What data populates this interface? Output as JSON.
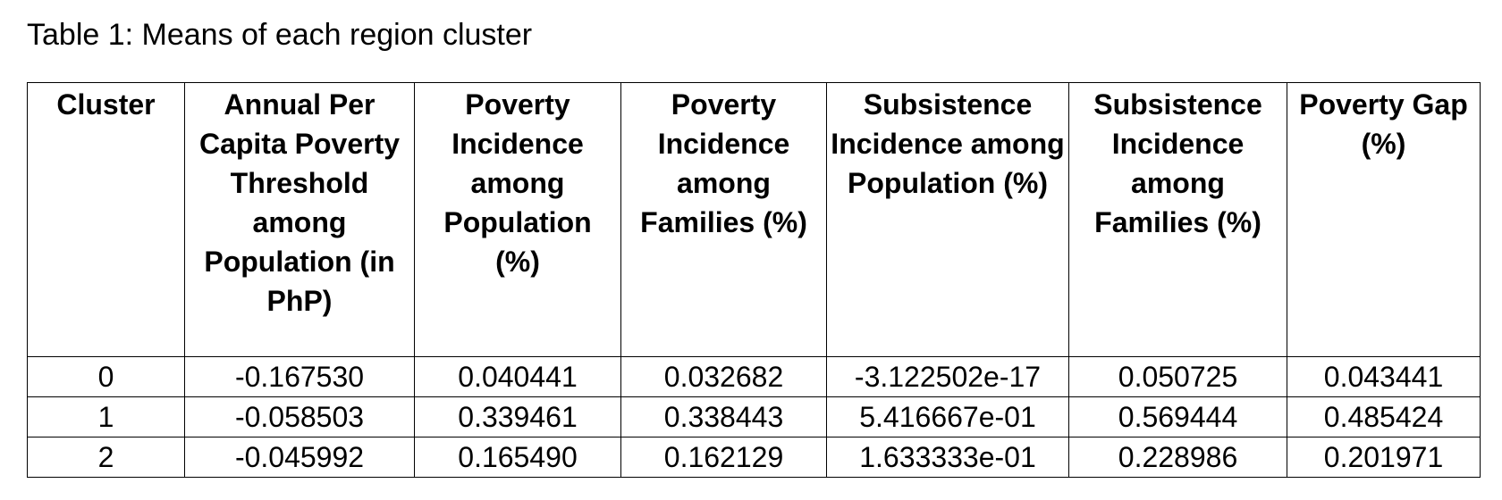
{
  "caption": "Table 1: Means of each region cluster",
  "table": {
    "headers": [
      "Cluster",
      "Annual Per Capita Poverty Threshold among Population (in PhP)",
      "Poverty Incidence among Population (%)",
      "Poverty Incidence among Families (%)",
      "Subsistence Incidence among Population (%)",
      "Subsistence Incidence among Families (%)",
      "Poverty Gap (%)"
    ],
    "rows": [
      [
        "0",
        "-0.167530",
        "0.040441",
        "0.032682",
        "-3.122502e-17",
        "0.050725",
        "0.043441"
      ],
      [
        "1",
        "-0.058503",
        "0.339461",
        "0.338443",
        "5.416667e-01",
        "0.569444",
        "0.485424"
      ],
      [
        "2",
        "-0.045992",
        "0.165490",
        "0.162129",
        "1.633333e-01",
        "0.228986",
        "0.201971"
      ]
    ]
  }
}
